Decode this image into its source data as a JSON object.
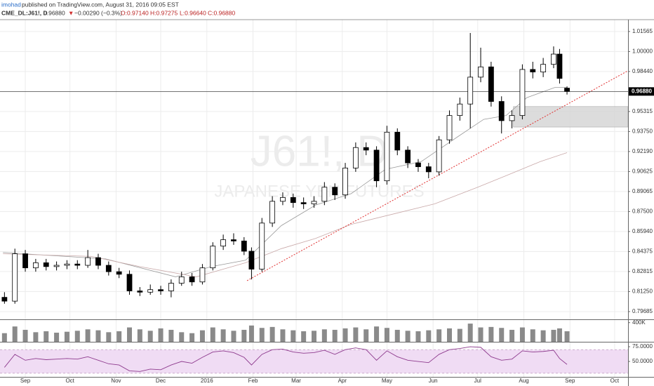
{
  "header": {
    "author": "imohad",
    "published": "published on TradingView.com, August 31, 2016 09:05 EST",
    "symbol": "CME_DL:J61!, D",
    "last": "0.96880",
    "arrow": "▼",
    "change": "−0.00290 (−0.3%)",
    "o": "O:0.97140",
    "h": "H:0.97275",
    "l": "L:0.96640",
    "c": "C:0.96880"
  },
  "chart_data": [
    {
      "type": "candlestick",
      "watermark": "J61!, D",
      "watermark_subtitle": "JAPANESE YEN FUTURES",
      "xlim": [
        0,
        422
      ],
      "ylim": [
        0.7908,
        1.0249
      ],
      "yticks": [
        {
          "value": 1.01565,
          "label": "1.01565"
        },
        {
          "value": 1,
          "label": "1.00000"
        },
        {
          "value": 0.9844,
          "label": "0.98440"
        },
        {
          "value": 0.95315,
          "label": "0.95315"
        },
        {
          "value": 0.9375,
          "label": "0.93750"
        },
        {
          "value": 0.9219,
          "label": "0.92190"
        },
        {
          "value": 0.90625,
          "label": "0.90625"
        },
        {
          "value": 0.89065,
          "label": "0.89065"
        },
        {
          "value": 0.875,
          "label": "0.87500"
        },
        {
          "value": 0.8594,
          "label": "0.85940"
        },
        {
          "value": 0.84375,
          "label": "0.84375"
        },
        {
          "value": 0.82815,
          "label": "0.82815"
        },
        {
          "value": 0.8125,
          "label": "0.81250"
        },
        {
          "value": 0.79685,
          "label": "0.79685"
        }
      ],
      "last_label": "0.96880",
      "x": [
        3,
        10,
        17,
        24,
        31,
        38,
        45,
        52,
        59,
        66,
        73,
        80,
        87,
        94,
        101,
        108,
        115,
        122,
        129,
        136,
        143,
        150,
        157,
        164,
        169,
        176,
        183,
        190,
        197,
        204,
        211,
        218,
        225,
        232,
        239,
        246,
        253,
        260,
        267,
        274,
        281,
        288,
        295,
        302,
        309,
        316,
        323,
        330,
        337,
        344,
        351,
        358,
        365,
        372,
        376,
        381
      ],
      "open": [
        0.808,
        0.805,
        0.842,
        0.831,
        0.835,
        0.832,
        0.833,
        0.834,
        0.833,
        0.839,
        0.833,
        0.828,
        0.826,
        0.813,
        0.812,
        0.814,
        0.813,
        0.819,
        0.824,
        0.82,
        0.831,
        0.848,
        0.853,
        0.852,
        0.844,
        0.83,
        0.866,
        0.883,
        0.886,
        0.882,
        0.881,
        0.883,
        0.894,
        0.888,
        0.909,
        0.925,
        0.923,
        0.899,
        0.937,
        0.923,
        0.913,
        0.91,
        0.906,
        0.931,
        0.95,
        0.959,
        0.98,
        0.988,
        0.961,
        0.946,
        0.95,
        0.986,
        0.984,
        0.99,
        0.998,
        0.9714
      ],
      "high": [
        0.812,
        0.846,
        0.845,
        0.838,
        0.838,
        0.836,
        0.837,
        0.837,
        0.845,
        0.842,
        0.836,
        0.831,
        0.829,
        0.816,
        0.818,
        0.817,
        0.822,
        0.828,
        0.827,
        0.834,
        0.851,
        0.857,
        0.858,
        0.855,
        0.847,
        0.87,
        0.887,
        0.89,
        0.889,
        0.886,
        0.887,
        0.898,
        0.897,
        0.913,
        0.929,
        0.929,
        0.926,
        0.942,
        0.94,
        0.926,
        0.916,
        0.913,
        0.934,
        0.954,
        0.964,
        1.0145,
        1.003,
        0.992,
        0.965,
        0.954,
        0.99,
        0.992,
        0.995,
        1.004,
        1.002,
        0.97275
      ],
      "low": [
        0.803,
        0.803,
        0.828,
        0.828,
        0.829,
        0.829,
        0.83,
        0.83,
        0.831,
        0.83,
        0.825,
        0.823,
        0.81,
        0.809,
        0.81,
        0.81,
        0.808,
        0.817,
        0.817,
        0.818,
        0.829,
        0.845,
        0.849,
        0.841,
        0.822,
        0.828,
        0.863,
        0.88,
        0.878,
        0.877,
        0.878,
        0.88,
        0.884,
        0.885,
        0.906,
        0.919,
        0.894,
        0.896,
        0.919,
        0.909,
        0.906,
        0.901,
        0.903,
        0.928,
        0.946,
        0.94,
        0.976,
        0.957,
        0.936,
        0.94,
        0.947,
        0.979,
        0.98,
        0.987,
        0.975,
        0.9664
      ],
      "close": [
        0.805,
        0.842,
        0.831,
        0.835,
        0.832,
        0.833,
        0.834,
        0.833,
        0.839,
        0.833,
        0.828,
        0.826,
        0.813,
        0.812,
        0.814,
        0.813,
        0.819,
        0.824,
        0.82,
        0.831,
        0.848,
        0.853,
        0.852,
        0.844,
        0.83,
        0.866,
        0.883,
        0.886,
        0.882,
        0.881,
        0.883,
        0.894,
        0.888,
        0.909,
        0.925,
        0.923,
        0.899,
        0.937,
        0.923,
        0.913,
        0.91,
        0.906,
        0.931,
        0.95,
        0.959,
        0.98,
        0.988,
        0.961,
        0.946,
        0.95,
        0.986,
        0.984,
        0.99,
        0.998,
        0.979,
        0.9688
      ],
      "up_color": "#ffffff",
      "down_color": "#000000",
      "lines": [
        {
          "color": "#9a9a9a",
          "x": [
            2,
            71,
            118,
            142,
            165,
            189,
            212,
            236,
            259,
            283,
            307,
            325,
            340,
            354,
            373,
            381
          ],
          "values": [
            0.843,
            0.838,
            0.824,
            0.832,
            0.837,
            0.864,
            0.88,
            0.889,
            0.908,
            0.914,
            0.933,
            0.947,
            0.95,
            0.964,
            0.972,
            0.972
          ]
        },
        {
          "color": "#c9a9a9",
          "x": [
            2,
            61,
            94,
            132,
            165,
            189,
            212,
            236,
            264,
            292,
            321,
            340,
            363,
            381
          ],
          "values": [
            0.842,
            0.84,
            0.832,
            0.824,
            0.835,
            0.846,
            0.854,
            0.865,
            0.873,
            0.881,
            0.894,
            0.903,
            0.914,
            0.921
          ]
        }
      ],
      "trendline": {
        "color": "#e03030",
        "x": [
          166,
          422
        ],
        "values": [
          0.821,
          0.985
        ]
      },
      "box": {
        "color": "#d6d6d6",
        "x": [
          345,
          422
        ],
        "values": [
          0.941,
          0.957
        ]
      }
    },
    {
      "type": "bar",
      "xlim": [
        0,
        422
      ],
      "ylim": [
        0,
        440000
      ],
      "color": "#8a8a8a",
      "yticks": [
        {
          "value": 400000,
          "label": "400K"
        }
      ],
      "x": [
        3,
        10,
        17,
        24,
        31,
        38,
        45,
        52,
        59,
        66,
        73,
        80,
        87,
        94,
        101,
        108,
        115,
        122,
        129,
        136,
        143,
        150,
        157,
        164,
        169,
        176,
        183,
        190,
        197,
        204,
        211,
        218,
        225,
        232,
        239,
        246,
        253,
        260,
        267,
        274,
        281,
        288,
        295,
        302,
        309,
        316,
        323,
        330,
        337,
        344,
        351,
        358,
        365,
        372,
        376,
        381
      ],
      "values": [
        180000,
        320000,
        250000,
        200000,
        220000,
        190000,
        210000,
        230000,
        260000,
        240000,
        200000,
        220000,
        300000,
        260000,
        230000,
        280000,
        250000,
        200000,
        180000,
        240000,
        300000,
        260000,
        230000,
        250000,
        340000,
        290000,
        310000,
        260000,
        240000,
        220000,
        230000,
        260000,
        250000,
        280000,
        300000,
        260000,
        320000,
        290000,
        250000,
        230000,
        220000,
        240000,
        260000,
        280000,
        270000,
        380000,
        300000,
        310000,
        290000,
        250000,
        300000,
        260000,
        240000,
        250000,
        280000,
        220000
      ]
    },
    {
      "type": "line",
      "xlim": [
        0,
        422
      ],
      "ylim": [
        23.8,
        81
      ],
      "color": "#8e3b8e",
      "band": [
        30,
        70
      ],
      "band_color": "#f0dcf4",
      "yticks": [
        {
          "value": 75,
          "label": "75.0000"
        },
        {
          "value": 50,
          "label": "50.0000"
        }
      ],
      "xticks": [
        {
          "value": 17,
          "label": "Sep"
        },
        {
          "value": 47,
          "label": "Oct"
        },
        {
          "value": 78,
          "label": "Nov"
        },
        {
          "value": 108,
          "label": "Dec"
        },
        {
          "value": 139,
          "label": "2016"
        },
        {
          "value": 170,
          "label": "Feb"
        },
        {
          "value": 199,
          "label": "Mar"
        },
        {
          "value": 230,
          "label": "Apr"
        },
        {
          "value": 260,
          "label": "May"
        },
        {
          "value": 291,
          "label": "Jun"
        },
        {
          "value": 321,
          "label": "Jul"
        },
        {
          "value": 352,
          "label": "Aug"
        },
        {
          "value": 383,
          "label": "Sep"
        },
        {
          "value": 413,
          "label": "Oct"
        }
      ],
      "x": [
        3,
        10,
        17,
        24,
        31,
        38,
        45,
        52,
        59,
        66,
        73,
        80,
        87,
        94,
        101,
        108,
        115,
        122,
        129,
        136,
        143,
        150,
        157,
        164,
        169,
        176,
        183,
        190,
        197,
        204,
        211,
        218,
        225,
        232,
        239,
        246,
        253,
        260,
        267,
        274,
        281,
        288,
        295,
        302,
        309,
        316,
        323,
        330,
        337,
        344,
        351,
        358,
        365,
        372,
        376,
        381
      ],
      "values": [
        40,
        62,
        52,
        55,
        53,
        54,
        55,
        54,
        58,
        52,
        46,
        44,
        34,
        33,
        37,
        36,
        44,
        50,
        47,
        57,
        66,
        68,
        65,
        57,
        44,
        62,
        70,
        71,
        66,
        64,
        65,
        69,
        62,
        70,
        73,
        70,
        52,
        68,
        58,
        52,
        50,
        48,
        62,
        70,
        72,
        75,
        74,
        58,
        52,
        54,
        68,
        66,
        67,
        69,
        55,
        45
      ]
    }
  ]
}
